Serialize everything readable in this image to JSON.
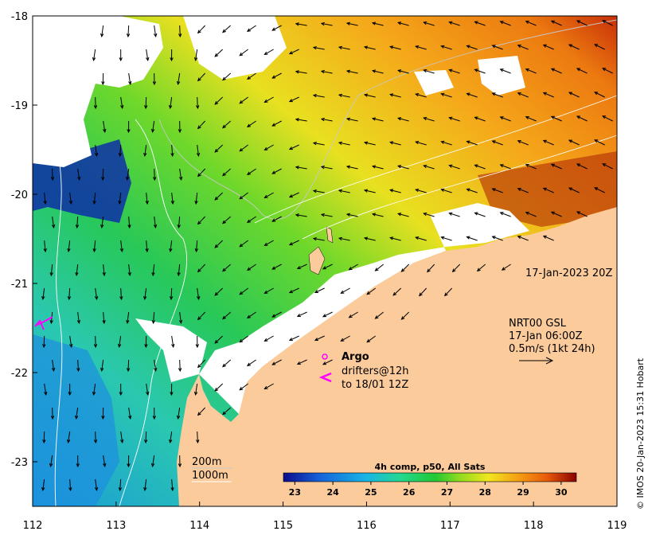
{
  "map": {
    "lon_ticks": [
      "112",
      "113",
      "114",
      "115",
      "116",
      "117",
      "118",
      "119"
    ],
    "lat_ticks": [
      "-18",
      "-19",
      "-20",
      "-21",
      "-22",
      "-23"
    ],
    "lon_range": [
      112,
      119
    ],
    "lat_range": [
      -23.5,
      -18
    ]
  },
  "annotations": {
    "timestamp": "17-Jan-2023 20Z",
    "currents_line1": "NRT00 GSL",
    "currents_line2": "17-Jan 06:00Z",
    "currents_line3": "0.5m/s (1kt 24h)",
    "argo_label": "Argo",
    "drifters_line1": "drifters@12h",
    "drifters_line2": "to 18/01 12Z",
    "contour_200": "200m",
    "contour_1000": "1000m"
  },
  "colorbar": {
    "title": "4h comp, p50, All Sats",
    "ticks": [
      "23",
      "24",
      "25",
      "26",
      "27",
      "28",
      "29",
      "30"
    ],
    "range": [
      22.7,
      30.4
    ],
    "colors": [
      "#0b0b8a",
      "#1560d8",
      "#18b4e6",
      "#23d890",
      "#22c832",
      "#8fdc1e",
      "#f0e61e",
      "#f5a014",
      "#e85a0a",
      "#8a0000"
    ]
  },
  "colors": {
    "land": "#fbcb9c",
    "cloud": "#ffffff",
    "argo_marker": "#ff00ff",
    "drifter_marker": "#ff00ff"
  },
  "credit": "© IMOS 20-Jan-2023 15:31 Hobart"
}
